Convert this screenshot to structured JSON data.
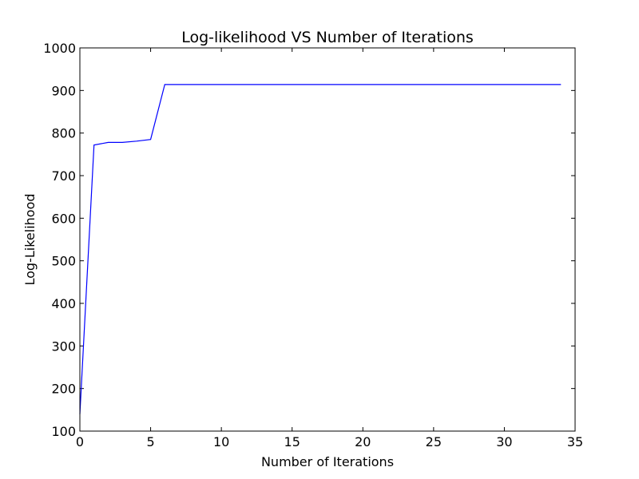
{
  "chart_data": {
    "type": "line",
    "title": "Log-likelihood VS Number of Iterations",
    "xlabel": "Number of Iterations",
    "ylabel": "Log-Likelihood",
    "xlim": [
      0,
      35
    ],
    "ylim": [
      100,
      1000
    ],
    "xticks": [
      0,
      5,
      10,
      15,
      20,
      25,
      30,
      35
    ],
    "yticks": [
      100,
      200,
      300,
      400,
      500,
      600,
      700,
      800,
      900,
      1000
    ],
    "grid": false,
    "series": [
      {
        "color": "#0000ff",
        "x": [
          0,
          1,
          2,
          3,
          4,
          5,
          6,
          7,
          8,
          9,
          10,
          11,
          12,
          13,
          14,
          15,
          16,
          17,
          18,
          19,
          20,
          21,
          22,
          23,
          24,
          25,
          26,
          27,
          28,
          29,
          30,
          31,
          32,
          33,
          34
        ],
        "y": [
          140,
          772,
          778,
          778,
          781,
          785,
          914,
          914,
          914,
          914,
          914,
          914,
          914,
          914,
          914,
          914,
          914,
          914,
          914,
          914,
          914,
          914,
          914,
          914,
          914,
          914,
          914,
          914,
          914,
          914,
          914,
          914,
          914,
          914,
          914
        ]
      }
    ]
  }
}
